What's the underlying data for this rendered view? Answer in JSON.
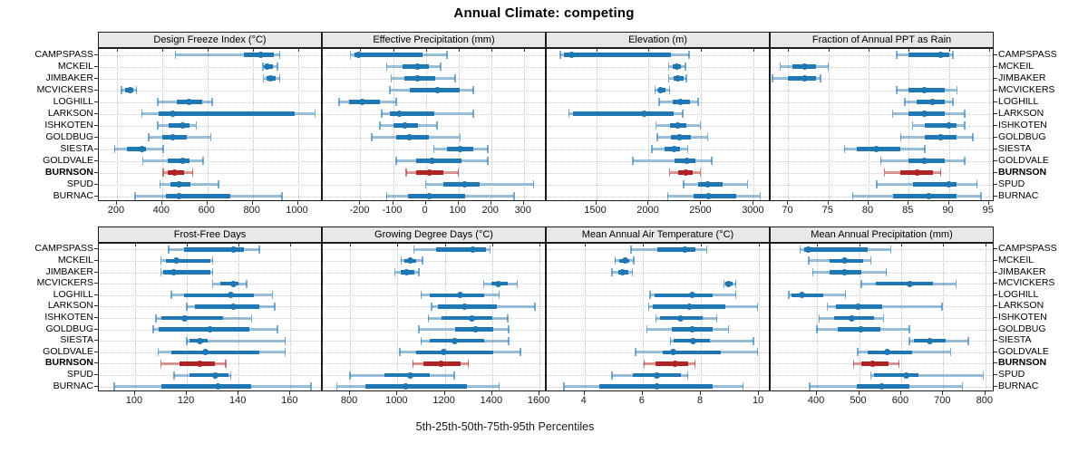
{
  "title": "Annual Climate: competing",
  "caption": "5th-25th-50th-75th-95th Percentiles",
  "sites": [
    "CAMPSPASS",
    "MCKEIL",
    "JIMBAKER",
    "MCVICKERS",
    "LOGHILL",
    "LARKSON",
    "ISHKOTEN",
    "GOLDBUG",
    "SIESTA",
    "GOLDVALE",
    "BURNSON",
    "SPUD",
    "BURNAC"
  ],
  "highlight_site": "BURNSON",
  "colors": {
    "series_blue": "#1f77b4",
    "highlight_red": "#b22222",
    "strip_bg": "#e8e8e8",
    "grid": "#c4c4c4",
    "border": "#1c1c1c"
  },
  "chart_data": {
    "type": "dotplot-percentiles",
    "percentiles": [
      5,
      25,
      50,
      75,
      95
    ],
    "legend_position": "none",
    "grid": "dotted",
    "panels": [
      {
        "row": 0,
        "col": 0,
        "title": "Design Freeze Index (°C)",
        "xlim": [
          120,
          1110
        ],
        "ticks": [
          200,
          400,
          600,
          800,
          1000
        ],
        "values": [
          [
            458,
            760,
            835,
            895,
            920
          ],
          [
            845,
            855,
            865,
            890,
            910
          ],
          [
            848,
            862,
            878,
            900,
            920
          ],
          [
            220,
            235,
            258,
            274,
            287
          ],
          [
            380,
            463,
            520,
            575,
            622
          ],
          [
            310,
            385,
            445,
            985,
            1075
          ],
          [
            380,
            430,
            490,
            520,
            550
          ],
          [
            340,
            400,
            445,
            510,
            615
          ],
          [
            190,
            245,
            310,
            330,
            405
          ],
          [
            315,
            425,
            490,
            520,
            580
          ],
          [
            405,
            425,
            453,
            497,
            535
          ],
          [
            390,
            438,
            475,
            523,
            650
          ],
          [
            280,
            415,
            473,
            700,
            930
          ]
        ]
      },
      {
        "row": 0,
        "col": 1,
        "title": "Effective Precipitation (mm)",
        "xlim": [
          -315,
          370
        ],
        "ticks": [
          -200,
          -100,
          0,
          100,
          200,
          300
        ],
        "values": [
          [
            -230,
            -218,
            -205,
            -10,
            65
          ],
          [
            -120,
            -70,
            -25,
            10,
            45
          ],
          [
            -105,
            -65,
            -25,
            30,
            90
          ],
          [
            -110,
            -50,
            35,
            105,
            145
          ],
          [
            -265,
            -235,
            -195,
            -140,
            -90
          ],
          [
            -135,
            -110,
            -80,
            25,
            145
          ],
          [
            -140,
            -100,
            -65,
            -25,
            35
          ],
          [
            -165,
            -90,
            -50,
            10,
            105
          ],
          [
            25,
            65,
            105,
            145,
            190
          ],
          [
            -90,
            -30,
            20,
            110,
            190
          ],
          [
            -60,
            -30,
            10,
            55,
            100
          ],
          [
            0,
            55,
            120,
            165,
            330
          ],
          [
            -120,
            -55,
            10,
            120,
            270
          ]
        ]
      },
      {
        "row": 0,
        "col": 2,
        "title": "Elevation (m)",
        "xlim": [
          1030,
          3160
        ],
        "ticks": [
          1500,
          2000,
          2500,
          3000
        ],
        "values": [
          [
            1160,
            1190,
            1265,
            2215,
            2385
          ],
          [
            2190,
            2230,
            2270,
            2310,
            2350
          ],
          [
            2190,
            2240,
            2280,
            2330,
            2360
          ],
          [
            2060,
            2090,
            2115,
            2160,
            2200
          ],
          [
            2100,
            2230,
            2300,
            2390,
            2470
          ],
          [
            1240,
            1280,
            1955,
            2235,
            2325
          ],
          [
            2070,
            2200,
            2280,
            2360,
            2490
          ],
          [
            2080,
            2210,
            2290,
            2400,
            2560
          ],
          [
            2030,
            2150,
            2240,
            2300,
            2370
          ],
          [
            1850,
            2250,
            2360,
            2440,
            2600
          ],
          [
            2200,
            2280,
            2350,
            2420,
            2490
          ],
          [
            2330,
            2470,
            2560,
            2700,
            2940
          ],
          [
            2180,
            2430,
            2570,
            2830,
            3060
          ]
        ]
      },
      {
        "row": 0,
        "col": 3,
        "title": "Fraction of Annual PPT as Rain",
        "xlim": [
          67.8,
          95.7
        ],
        "ticks": [
          70,
          75,
          80,
          85,
          90,
          95
        ],
        "values": [
          [
            83.5,
            85,
            89,
            90,
            90.5
          ],
          [
            69,
            70.5,
            72,
            73.5,
            75
          ],
          [
            68,
            70,
            72,
            73.5,
            74
          ],
          [
            83.5,
            85,
            87,
            89.5,
            91
          ],
          [
            84.5,
            86,
            88,
            89.5,
            90.5
          ],
          [
            83,
            85,
            87,
            89.5,
            92
          ],
          [
            85.5,
            87,
            90,
            91,
            92
          ],
          [
            84,
            87,
            89,
            91,
            93
          ],
          [
            77,
            78.5,
            81,
            84,
            87
          ],
          [
            81.5,
            85,
            87,
            89.5,
            92
          ],
          [
            82,
            84,
            86,
            88,
            89
          ],
          [
            81,
            85.5,
            90,
            91,
            93.5
          ],
          [
            78,
            83,
            87.5,
            91,
            94
          ]
        ]
      },
      {
        "row": 1,
        "col": 0,
        "title": "Frost-Free Days",
        "xlim": [
          86,
          172.5
        ],
        "ticks": [
          100,
          120,
          140,
          160
        ],
        "values": [
          [
            113,
            119,
            138,
            142,
            148
          ],
          [
            110,
            112,
            116,
            129,
            130
          ],
          [
            110,
            111,
            115,
            129,
            130
          ],
          [
            130,
            133,
            138,
            140,
            143
          ],
          [
            114,
            119,
            137,
            146,
            153
          ],
          [
            120,
            123,
            138,
            148,
            154
          ],
          [
            108,
            110,
            119,
            134,
            145
          ],
          [
            107,
            109,
            129,
            144,
            155
          ],
          [
            120,
            121,
            125,
            128,
            158
          ],
          [
            109,
            114,
            127,
            148,
            158
          ],
          [
            110,
            117,
            125,
            131,
            135
          ],
          [
            115,
            121,
            131,
            136,
            137
          ],
          [
            92,
            110,
            132,
            145,
            168
          ]
        ]
      },
      {
        "row": 1,
        "col": 1,
        "title": "Growing Degree Days (°C)",
        "xlim": [
          685,
          1630
        ],
        "ticks": [
          800,
          1000,
          1200,
          1400,
          1600
        ],
        "values": [
          [
            1070,
            1165,
            1320,
            1375,
            1390
          ],
          [
            1015,
            1030,
            1055,
            1080,
            1105
          ],
          [
            990,
            1015,
            1040,
            1070,
            1090
          ],
          [
            1365,
            1395,
            1425,
            1465,
            1505
          ],
          [
            1100,
            1135,
            1265,
            1365,
            1430
          ],
          [
            1145,
            1170,
            1285,
            1420,
            1580
          ],
          [
            1130,
            1185,
            1315,
            1400,
            1465
          ],
          [
            1090,
            1245,
            1330,
            1405,
            1470
          ],
          [
            1100,
            1135,
            1240,
            1365,
            1470
          ],
          [
            1010,
            1080,
            1195,
            1405,
            1520
          ],
          [
            1065,
            1110,
            1185,
            1265,
            1300
          ],
          [
            800,
            945,
            1055,
            1135,
            1240
          ],
          [
            745,
            865,
            1035,
            1295,
            1430
          ]
        ]
      },
      {
        "row": 1,
        "col": 2,
        "title": "Mean Annual Air Temperature (°C)",
        "xlim": [
          2.7,
          10.4
        ],
        "ticks": [
          4,
          6,
          8,
          10
        ],
        "values": [
          [
            5.6,
            6.5,
            7.45,
            7.8,
            8.2
          ],
          [
            5.05,
            5.2,
            5.4,
            5.55,
            5.7
          ],
          [
            4.95,
            5.15,
            5.3,
            5.5,
            5.65
          ],
          [
            8.8,
            8.85,
            8.95,
            9.1,
            9.2
          ],
          [
            6.25,
            6.4,
            7.7,
            8.4,
            9.2
          ],
          [
            6.2,
            6.35,
            7.6,
            8.85,
            9.95
          ],
          [
            6.45,
            6.6,
            7.3,
            8.05,
            8.55
          ],
          [
            6.15,
            7.0,
            7.7,
            8.4,
            8.95
          ],
          [
            6.95,
            7.05,
            7.75,
            8.3,
            9.8
          ],
          [
            5.75,
            6.7,
            7.05,
            8.7,
            9.95
          ],
          [
            6.05,
            6.45,
            7.1,
            7.55,
            7.8
          ],
          [
            4.95,
            5.65,
            6.5,
            7.3,
            7.55
          ],
          [
            3.3,
            4.5,
            6.5,
            8.4,
            9.45
          ]
        ]
      },
      {
        "row": 1,
        "col": 3,
        "title": "Mean Annual Precipitation (mm)",
        "xlim": [
          290,
          822
        ],
        "ticks": [
          400,
          500,
          600,
          700,
          800
        ],
        "values": [
          [
            360,
            370,
            380,
            520,
            575
          ],
          [
            380,
            430,
            465,
            510,
            528
          ],
          [
            390,
            430,
            465,
            505,
            565
          ],
          [
            505,
            540,
            620,
            675,
            730
          ],
          [
            333,
            340,
            365,
            415,
            468
          ],
          [
            425,
            445,
            497,
            555,
            697
          ],
          [
            405,
            440,
            483,
            535,
            558
          ],
          [
            400,
            450,
            505,
            550,
            620
          ],
          [
            620,
            630,
            668,
            705,
            760
          ],
          [
            497,
            520,
            567,
            625,
            717
          ],
          [
            487,
            505,
            532,
            570,
            595
          ],
          [
            528,
            535,
            612,
            640,
            795
          ],
          [
            383,
            495,
            553,
            620,
            745
          ]
        ]
      }
    ]
  }
}
